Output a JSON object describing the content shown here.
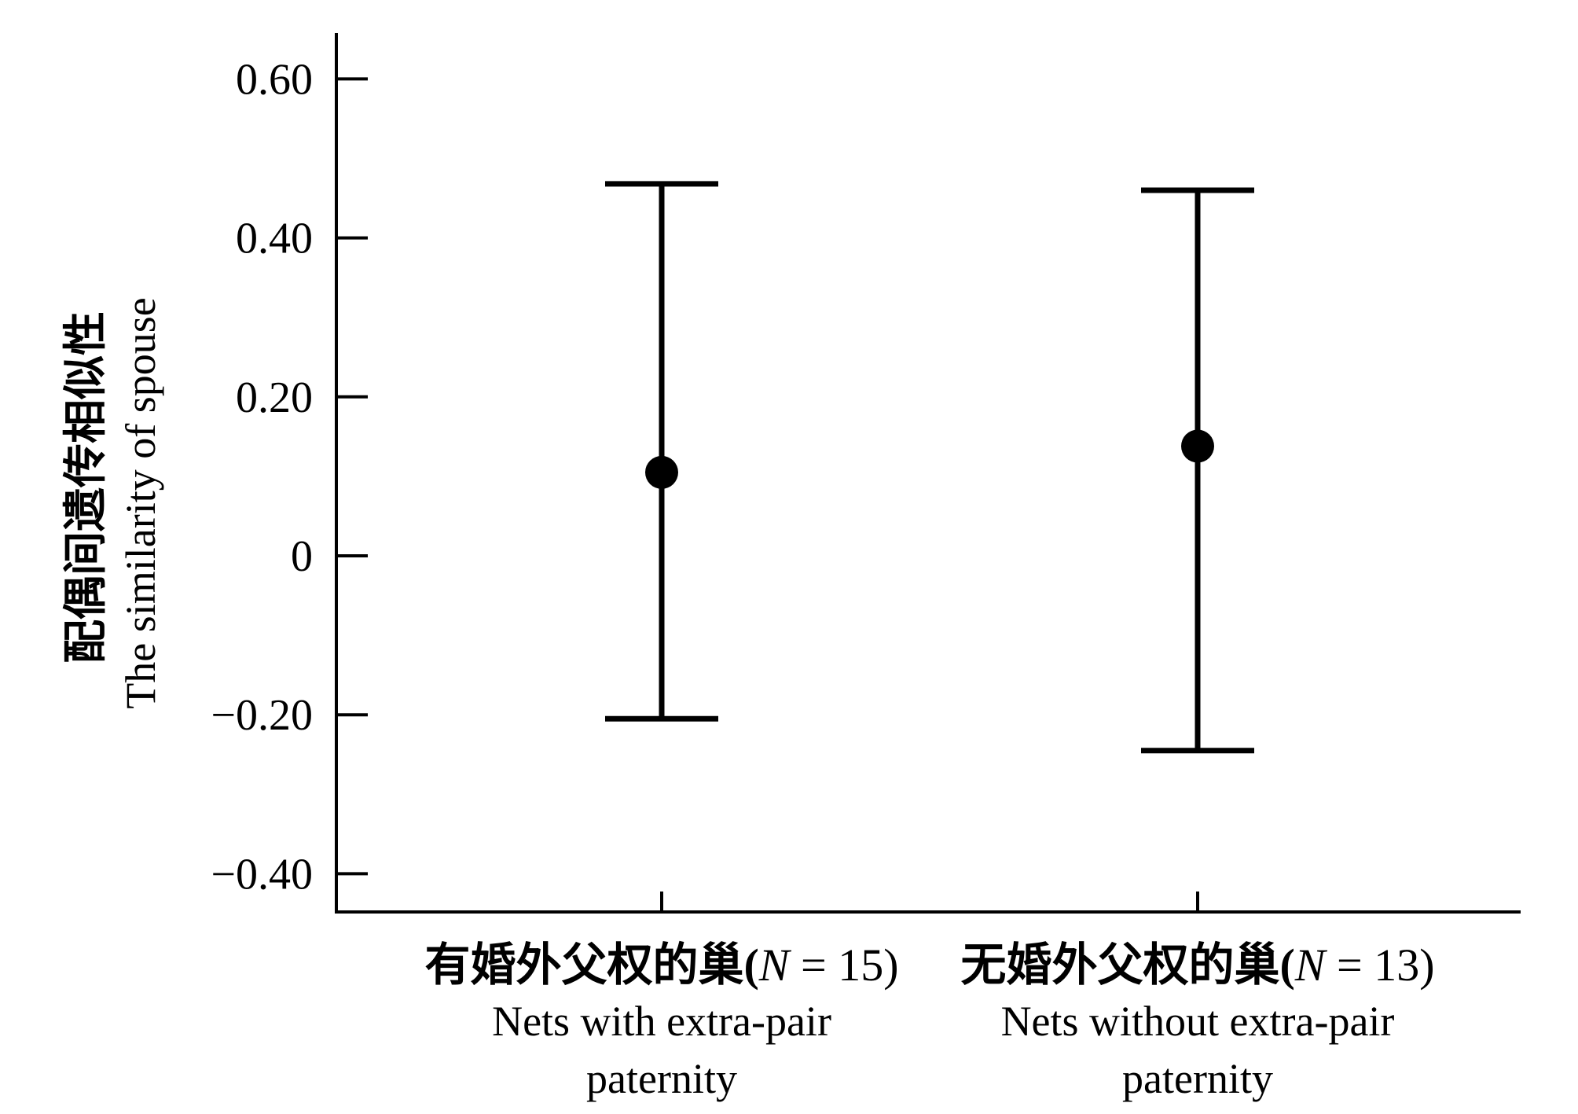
{
  "chart_data": {
    "type": "errorbar",
    "ylabel_cn": "配偶间遗传相似性",
    "ylabel_en": "The similarity of spouse",
    "ylim": [
      -0.45,
      0.66
    ],
    "yticks": [
      -0.4,
      -0.2,
      0,
      0.2,
      0.4,
      0.6
    ],
    "ytick_labels": [
      "−0.40",
      "−0.20",
      "0",
      "0.20",
      "0.40",
      "0.60"
    ],
    "grid": false,
    "groups": [
      {
        "label_cn": "有婚外父权的巢(",
        "n_symbol": "N",
        "n_text": " = 15)",
        "label_en_line1": "Nets with extra-pair",
        "label_en_line2": "paternity",
        "mean": 0.105,
        "lower": -0.205,
        "upper": 0.468
      },
      {
        "label_cn": "无婚外父权的巢(",
        "n_symbol": "N",
        "n_text": " = 13)",
        "label_en_line1": "Nets without extra-pair",
        "label_en_line2": "paternity",
        "mean": 0.138,
        "lower": -0.245,
        "upper": 0.46
      }
    ],
    "colors": {
      "marks": "#000000",
      "axes": "#000000"
    }
  }
}
